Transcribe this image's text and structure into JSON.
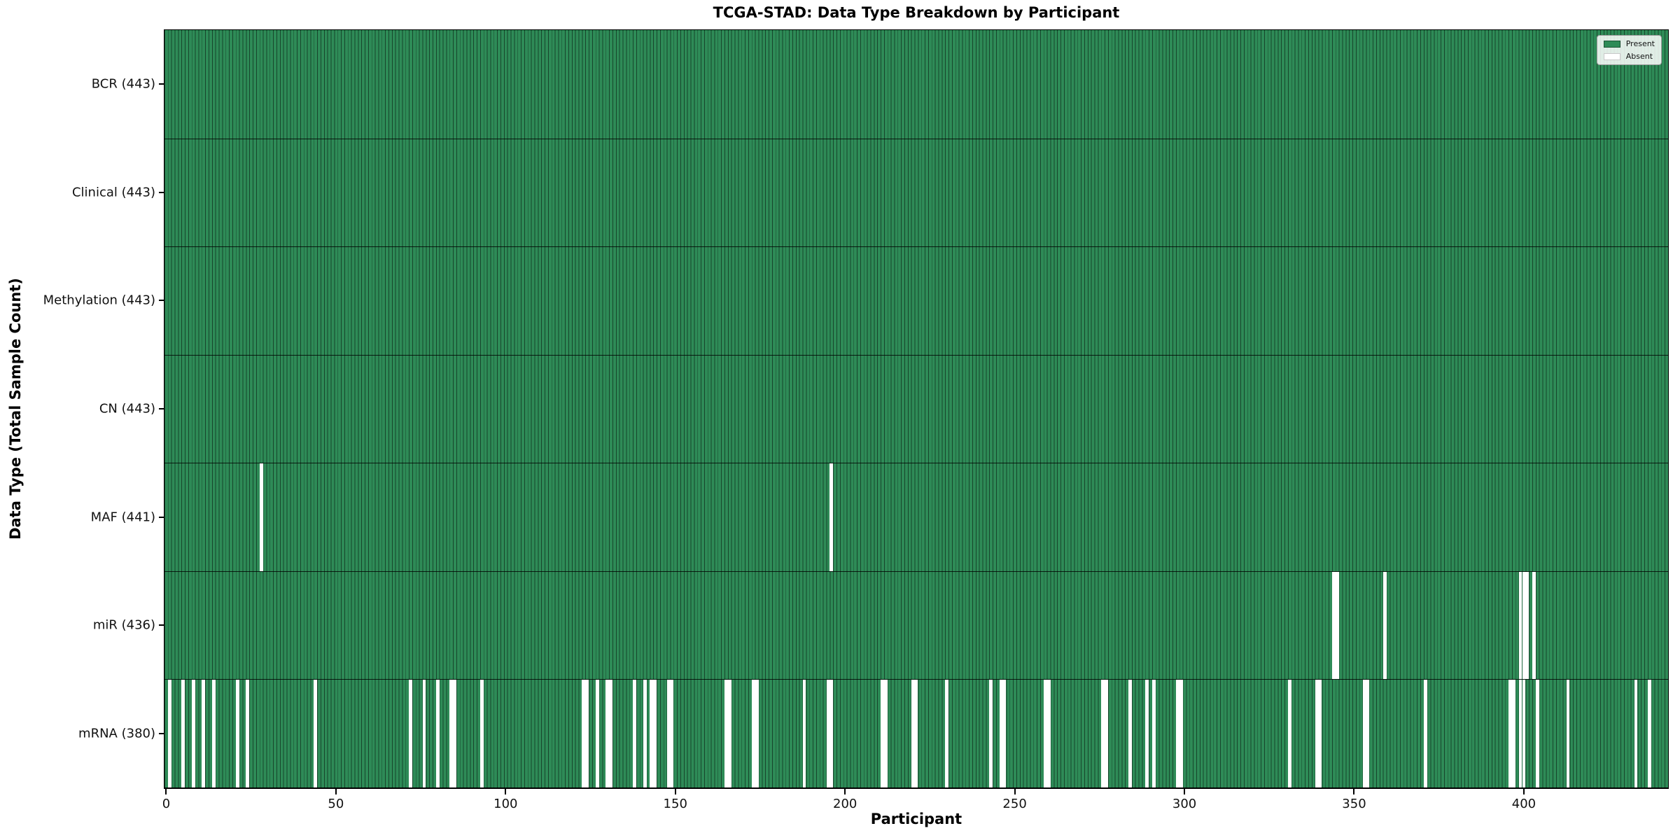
{
  "colors": {
    "present": "#2e8b57",
    "absent": "#ffffff",
    "bar_edge": "rgba(0,0,0,0.5)",
    "divider": "rgba(0,0,0,0.8)",
    "spine": "#000000"
  },
  "legend": {
    "present_label": "Present",
    "absent_label": "Absent",
    "position": "upper right"
  },
  "chart_data": {
    "type": "heatmap",
    "title": "TCGA-STAD: Data Type Breakdown by Participant",
    "xlabel": "Participant",
    "ylabel": "Data Type (Total Sample Count)",
    "legend_entries": [
      "Present",
      "Absent"
    ],
    "legend_position": "upper right",
    "n_participants": 443,
    "x_ticks": [
      0,
      50,
      100,
      150,
      200,
      250,
      300,
      350,
      400
    ],
    "x_range": [
      0,
      443
    ],
    "grid": false,
    "rows": [
      {
        "name": "BCR",
        "label": "BCR (443)",
        "present_count": 443,
        "absent_participants": []
      },
      {
        "name": "Clinical",
        "label": "Clinical (443)",
        "present_count": 443,
        "absent_participants": []
      },
      {
        "name": "Methylation",
        "label": "Methylation (443)",
        "present_count": 443,
        "absent_participants": []
      },
      {
        "name": "CN",
        "label": "CN (443)",
        "present_count": 443,
        "absent_participants": []
      },
      {
        "name": "MAF",
        "label": "MAF (441)",
        "present_count": 441,
        "absent_participants": [
          28,
          196
        ]
      },
      {
        "name": "miR",
        "label": "miR (436)",
        "present_count": 436,
        "absent_participants": [
          344,
          345,
          359,
          399,
          400,
          401,
          403
        ]
      },
      {
        "name": "mRNA",
        "label": "mRNA (380)",
        "present_count": 380,
        "absent_participants": [
          1,
          5,
          8,
          11,
          14,
          21,
          24,
          44,
          72,
          76,
          80,
          84,
          85,
          93,
          123,
          124,
          127,
          130,
          131,
          138,
          141,
          143,
          144,
          148,
          149,
          165,
          166,
          173,
          174,
          188,
          195,
          196,
          211,
          212,
          220,
          221,
          230,
          243,
          246,
          247,
          259,
          260,
          276,
          277,
          284,
          289,
          291,
          298,
          299,
          331,
          339,
          340,
          353,
          354,
          371,
          396,
          397,
          399,
          400,
          404,
          413,
          433,
          437
        ]
      }
    ]
  }
}
